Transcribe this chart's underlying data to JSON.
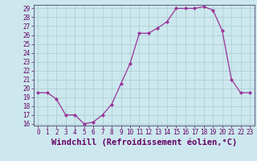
{
  "x": [
    0,
    1,
    2,
    3,
    4,
    5,
    6,
    7,
    8,
    9,
    10,
    11,
    12,
    13,
    14,
    15,
    16,
    17,
    18,
    19,
    20,
    21,
    22,
    23
  ],
  "y": [
    19.5,
    19.5,
    18.8,
    17.0,
    17.0,
    16.0,
    16.2,
    17.0,
    18.2,
    20.5,
    22.8,
    26.2,
    26.2,
    26.8,
    27.5,
    29.0,
    29.0,
    29.0,
    29.2,
    28.8,
    26.5,
    21.0,
    19.5,
    19.5
  ],
  "line_color": "#993399",
  "marker": "D",
  "marker_size": 2.0,
  "bg_color": "#cce8ee",
  "grid_color": "#aacccc",
  "xlabel": "Windchill (Refroidissement éolien,°C)",
  "ylim": [
    16,
    29
  ],
  "xlim": [
    -0.5,
    23.5
  ],
  "yticks": [
    16,
    17,
    18,
    19,
    20,
    21,
    22,
    23,
    24,
    25,
    26,
    27,
    28,
    29
  ],
  "xticks": [
    0,
    1,
    2,
    3,
    4,
    5,
    6,
    7,
    8,
    9,
    10,
    11,
    12,
    13,
    14,
    15,
    16,
    17,
    18,
    19,
    20,
    21,
    22,
    23
  ],
  "tick_fontsize": 5.5,
  "xlabel_fontsize": 7.5
}
